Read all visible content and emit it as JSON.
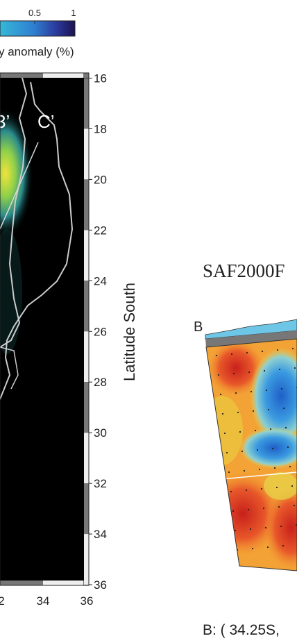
{
  "colorbar": {
    "ticks": [
      "0.5",
      "1"
    ],
    "label": "y anomaly (%)"
  },
  "map": {
    "labels": [
      "3’",
      "C’"
    ],
    "lat_ticks": [
      "16",
      "18",
      "20",
      "22",
      "24",
      "26",
      "28",
      "30",
      "32",
      "34",
      "36"
    ],
    "lat_label": "Latitude South",
    "lon_ticks": [
      "2",
      "34",
      "36"
    ]
  },
  "section": {
    "title": "SAF2000F",
    "label": "B",
    "caption": "B: ( 34.25S,"
  }
}
